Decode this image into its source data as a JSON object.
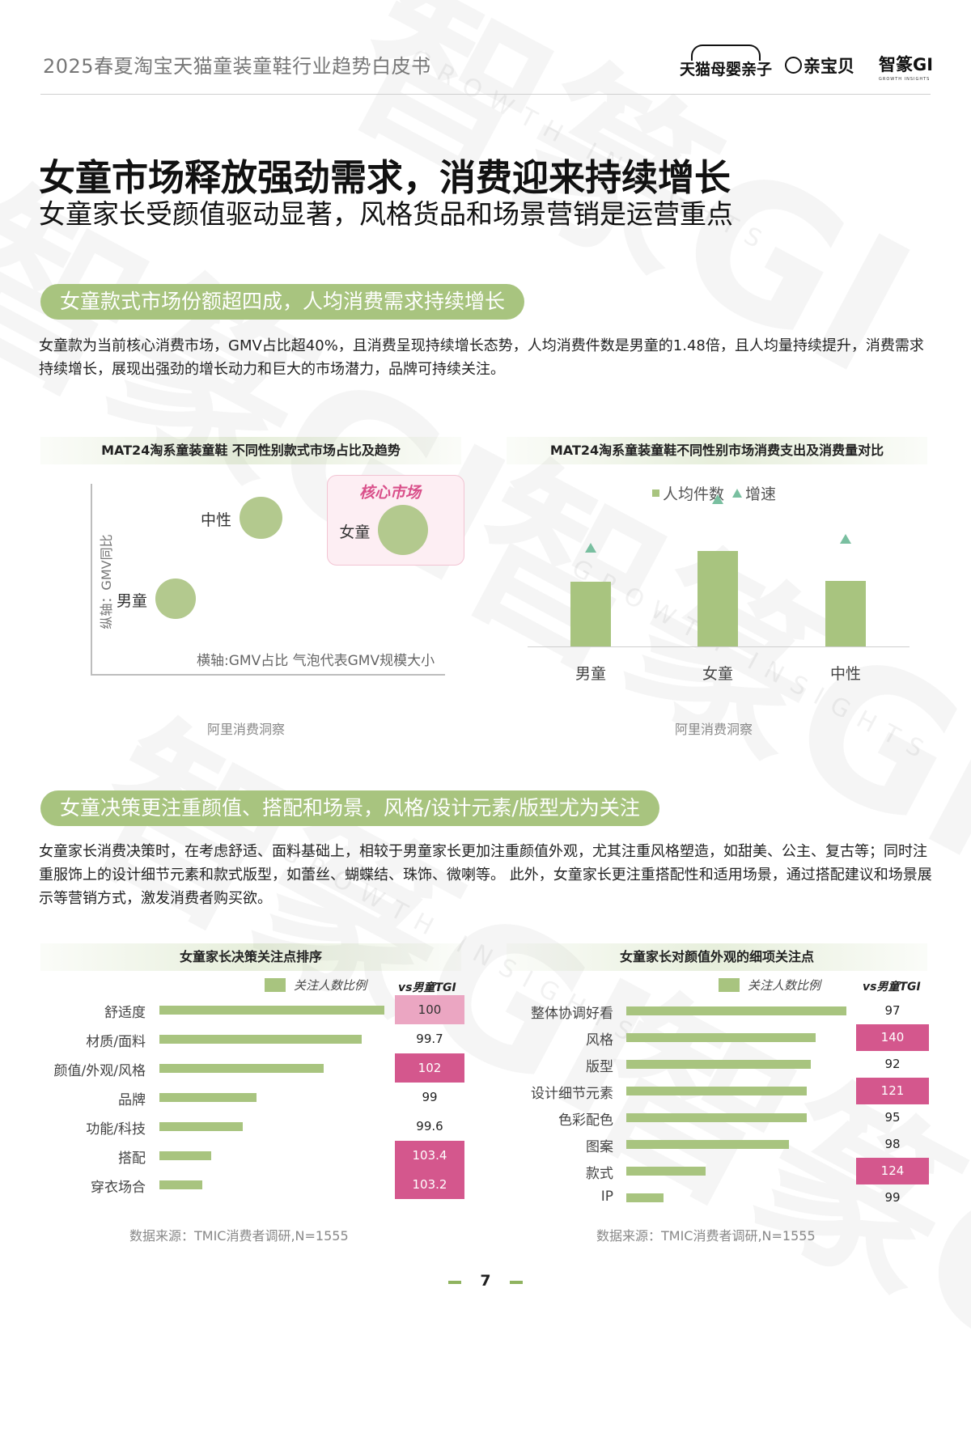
{
  "header": {
    "doc_title": "2025春夏淘宝天猫童装童鞋行业趋势白皮书",
    "logos": {
      "tmall": "天猫母婴亲子",
      "qinbaobei": "亲宝贝",
      "zhizhuan": "智篆GI",
      "zhizhuan_sub": "GROWTH INSIGHTS"
    }
  },
  "watermark": {
    "text": "智篆GI",
    "sub": "GROWTH INSIGHTS"
  },
  "main_title": "女童市场释放强劲需求，消费迎来持续增长",
  "main_subtitle": "女童家长受颜值驱动显著，风格货品和场景营销是运营重点",
  "section1": {
    "pill": "女童款式市场份额超四成，人均消费需求持续增长",
    "paragraph": "女童款为当前核心消费市场，GMV占比超40%，且消费呈现持续增长态势，人均消费件数是男童的1.48倍，且人均量持续提升，消费需求持续增长，展现出强劲的增长动力和巨大的市场潜力，品牌可持续关注。"
  },
  "section2": {
    "pill": "女童决策更注重颜值、搭配和场景，风格/设计元素/版型尤为关注",
    "paragraph": "女童家长消费决策时，在考虑舒适、面料基础上，相较于男童家长更加注重颜值外观，尤其注重风格塑造，如甜美、公主、复古等；同时注重服饰上的设计细节元素和款式版型，如蕾丝、蝴蝶结、珠饰、微喇等。 此外，女童家长更注重搭配性和适用场景，通过搭配建议和场景展示等营销方式，激发消费者购买欲。"
  },
  "chart_data": [
    {
      "type": "scatter",
      "title": "MAT24淘系童装童鞋 不同性别款式市场占比及趋势",
      "ylabel": "纵轴：GMV同比",
      "xlabel": "横轴:GMV占比  气泡代表GMV规模大小",
      "annotation": "核心市场",
      "source": "阿里消费洞察",
      "points": [
        {
          "label": "男童",
          "x": 0.22,
          "y": 0.32,
          "size": 0.8
        },
        {
          "label": "中性",
          "x": 0.46,
          "y": 0.72,
          "size": 0.85
        },
        {
          "label": "女童",
          "x": 0.86,
          "y": 0.66,
          "size": 1.0
        }
      ]
    },
    {
      "type": "bar",
      "title": "MAT24淘系童装童鞋不同性别市场消费支出及消费量对比",
      "categories": [
        "男童",
        "女童",
        "中性"
      ],
      "series": [
        {
          "name": "人均件数",
          "values": [
            1.0,
            1.48,
            1.02
          ]
        },
        {
          "name": "增速",
          "values": [
            0.55,
            0.82,
            0.6
          ]
        }
      ],
      "source": "阿里消费洞察"
    },
    {
      "type": "bar",
      "title": "女童家长决策关注点排序",
      "legend": "关注人数比例",
      "tgi_header": "vs男童TGI",
      "categories": [
        "舒适度",
        "材质/面料",
        "颜值/外观/风格",
        "品牌",
        "功能/科技",
        "搭配",
        "穿衣场合"
      ],
      "values": [
        1.0,
        0.9,
        0.73,
        0.43,
        0.37,
        0.23,
        0.19
      ],
      "tgi": [
        {
          "value": "100",
          "level": "mid"
        },
        {
          "value": "99.7",
          "level": "none"
        },
        {
          "value": "102",
          "level": "hi"
        },
        {
          "value": "99",
          "level": "none"
        },
        {
          "value": "99.6",
          "level": "none"
        },
        {
          "value": "103.4",
          "level": "hi"
        },
        {
          "value": "103.2",
          "level": "hi"
        }
      ],
      "source": "数据来源：TMIC消费者调研,N=1555"
    },
    {
      "type": "bar",
      "title": "女童家长对颜值外观的细项关注点",
      "legend": "关注人数比例",
      "tgi_header": "vs男童TGI",
      "categories": [
        "整体协调好看",
        "风格",
        "版型",
        "设计细节元素",
        "色彩配色",
        "图案",
        "款式",
        "IP"
      ],
      "values": [
        1.0,
        0.86,
        0.84,
        0.82,
        0.82,
        0.74,
        0.36,
        0.17
      ],
      "tgi": [
        {
          "value": "97",
          "level": "none"
        },
        {
          "value": "140",
          "level": "hi"
        },
        {
          "value": "92",
          "level": "none"
        },
        {
          "value": "121",
          "level": "hi"
        },
        {
          "value": "95",
          "level": "none"
        },
        {
          "value": "98",
          "level": "none"
        },
        {
          "value": "124",
          "level": "hi"
        },
        {
          "value": "99",
          "level": "none"
        }
      ],
      "source": "数据来源：TMIC消费者调研,N=1555"
    }
  ],
  "page_number": "7"
}
